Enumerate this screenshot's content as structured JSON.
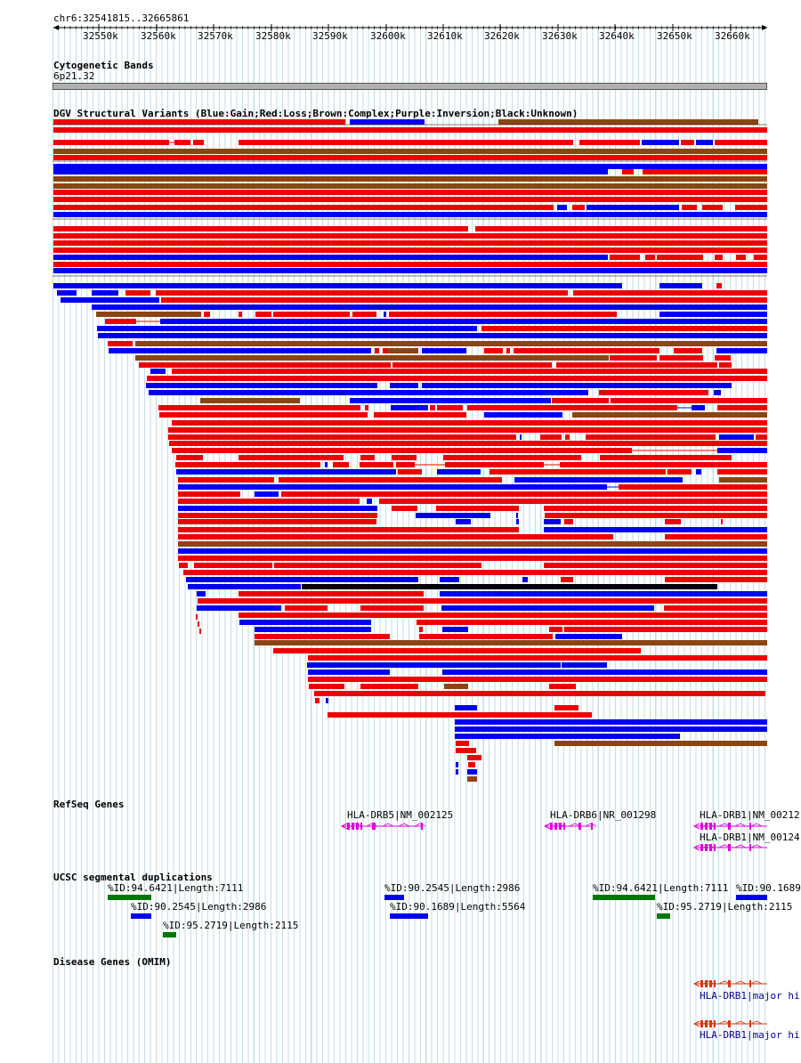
{
  "location": "chr6:32541815..32665861",
  "ruler": {
    "ticks": [
      "32550k",
      "32560k",
      "32570k",
      "32580k",
      "32590k",
      "32600k",
      "32610k",
      "32620k",
      "32630k",
      "32640k",
      "32650k",
      "32660k"
    ],
    "start": 32541815,
    "end": 32665861
  },
  "tracks": {
    "cytoband": {
      "title": "Cytogenetic Bands",
      "band": "6p21.32"
    },
    "dgv": {
      "title": "DGV Structural Variants (Blue:Gain;Red:Loss;Brown:Complex;Purple:Inversion;Black:Unknown)",
      "colors": {
        "gain": "#0000ee",
        "loss": "#ee0000",
        "complex": "#8b4513",
        "unknown": "#000000"
      }
    },
    "refseq": {
      "title": "RefSeq Genes",
      "genes": [
        {
          "label": "HLA-DRB5|NM_002125"
        },
        {
          "label": "HLA-DRB6|NR_001298"
        },
        {
          "label": "HLA-DRB1|NM_00212"
        },
        {
          "label": "HLA-DRB1|NM_00124"
        }
      ],
      "color": "#dd00dd"
    },
    "segdups": {
      "title": "UCSC segmental duplications",
      "items": [
        {
          "label": "%ID:94.6421|Length:7111",
          "color": "#007700"
        },
        {
          "label": "%ID:90.2545|Length:2986",
          "color": "#0000ee"
        },
        {
          "label": "%ID:95.2719|Length:2115",
          "color": "#007700"
        },
        {
          "label": "%ID:90.2545|Length:2986",
          "color": "#0000ee"
        },
        {
          "label": "%ID:90.1689|Length:5564",
          "color": "#0000ee"
        },
        {
          "label": "%ID:94.6421|Length:7111",
          "color": "#007700"
        },
        {
          "label": "%ID:95.2719|Length:2115",
          "color": "#007700"
        },
        {
          "label": "%ID:90.1689",
          "color": "#0000ee"
        }
      ]
    },
    "omim": {
      "title": "Disease Genes (OMIM)",
      "items": [
        {
          "label": "HLA-DRB1|major hi"
        },
        {
          "label": "HLA-DRB1|major hi"
        }
      ],
      "color": "#dd3311"
    }
  }
}
